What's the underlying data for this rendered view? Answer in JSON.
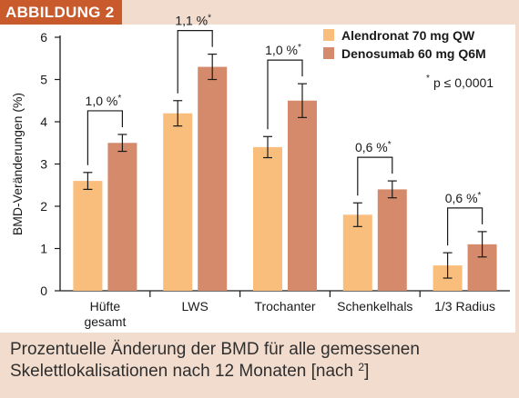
{
  "figure": {
    "label": "ABBILDUNG 2",
    "caption_main": "Prozentuelle Änderung der BMD für alle gemessenen Skelettlokalisationen nach 12 Monaten [nach ",
    "caption_ref": "2",
    "caption_end": "]"
  },
  "colors": {
    "alendronat": "#f9be7c",
    "denosumab": "#d68a6c",
    "header": "#c85a2c",
    "background": "#f2dccd"
  },
  "chart_data": {
    "type": "bar",
    "ylabel": "BMD-Veränderungen (%)",
    "xlabel": "",
    "ylim": [
      0,
      6
    ],
    "yticks": [
      "0",
      "1",
      "2",
      "3",
      "4",
      "5",
      "6"
    ],
    "grid": false,
    "legend_position": "top-right",
    "categories": [
      [
        "Hüfte",
        "gesamt"
      ],
      [
        "LWS"
      ],
      [
        "Trochanter"
      ],
      [
        "Schenkelhals"
      ],
      [
        "1/3 Radius"
      ]
    ],
    "series": [
      {
        "name": "Alendronat 70 mg QW",
        "color": "#f9be7c",
        "values": [
          2.6,
          4.2,
          3.4,
          1.8,
          0.6
        ],
        "err": [
          0.2,
          0.3,
          0.25,
          0.28,
          0.3
        ]
      },
      {
        "name": "Denosumab 60 mg Q6M",
        "color": "#d68a6c",
        "values": [
          3.5,
          5.3,
          4.5,
          2.4,
          1.1
        ],
        "err": [
          0.2,
          0.3,
          0.4,
          0.2,
          0.3
        ]
      }
    ],
    "annotations": [
      {
        "category": 0,
        "text": "1,0 %",
        "sup": "*"
      },
      {
        "category": 1,
        "text": "1,1 %",
        "sup": "*"
      },
      {
        "category": 2,
        "text": "1,0 %",
        "sup": "*"
      },
      {
        "category": 3,
        "text": "0,6 %",
        "sup": "*"
      },
      {
        "category": 4,
        "text": "0,6 %",
        "sup": "*"
      }
    ],
    "footnote": {
      "star": "*",
      "text": "p ≤ 0,0001"
    }
  }
}
